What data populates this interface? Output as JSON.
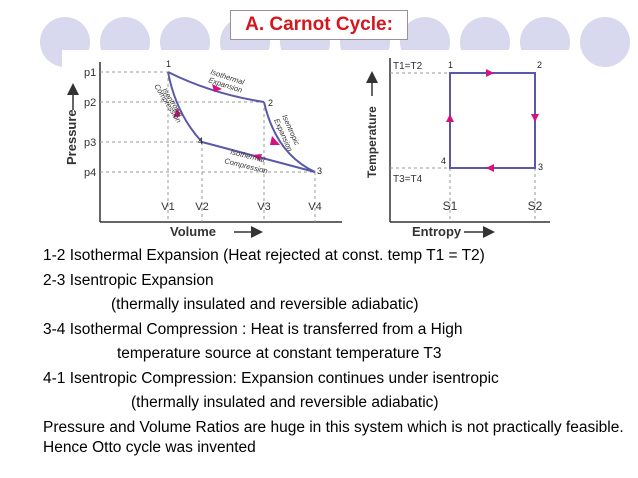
{
  "title": "A. Carnot Cycle:",
  "colors": {
    "title": "#d4161f",
    "circles": "#d8d8ee",
    "curve": "#5a58a8",
    "arrow": "#d4147e",
    "dashed": "#9a9a9a"
  },
  "pv_diagram": {
    "y_axis_label": "Pressure",
    "x_axis_label": "Volume",
    "pressure_ticks": [
      "p1",
      "p2",
      "p3",
      "p4"
    ],
    "volume_ticks": [
      "V1",
      "V2",
      "V3",
      "V4"
    ],
    "points": [
      "1",
      "2",
      "3",
      "4"
    ],
    "process_labels": {
      "isothermal_expansion": [
        "Isothermal",
        "Expansion"
      ],
      "isentropic_expansion": [
        "Isentropic",
        "Expansion"
      ],
      "isothermal_compression": [
        "Isothermal",
        "Compression"
      ],
      "isentropic_compression": [
        "Isentropic",
        "Compression"
      ]
    }
  },
  "ts_diagram": {
    "y_axis_label": "Temperature",
    "x_axis_label": "Entropy",
    "top_temp_label": "T1=T2",
    "bottom_temp_label": "T3=T4",
    "entropy_ticks": [
      "S1",
      "S2"
    ],
    "points": [
      "1",
      "2",
      "3",
      "4"
    ]
  },
  "description": [
    "1-2  Isothermal Expansion (Heat rejected at const. temp  T1 = T2)",
    "2-3  Isentropic Expansion",
    "(thermally insulated and reversible adiabatic)",
    "3-4   Isothermal Compression : Heat is transferred from a High",
    "temperature source at constant temperature T3",
    "4-1  Isentropic Compression: Expansion continues under isentropic",
    "(thermally insulated and reversible adiabatic)"
  ],
  "note": "Pressure and Volume Ratios are huge in this system which is not practically feasible. Hence Otto cycle was invented"
}
